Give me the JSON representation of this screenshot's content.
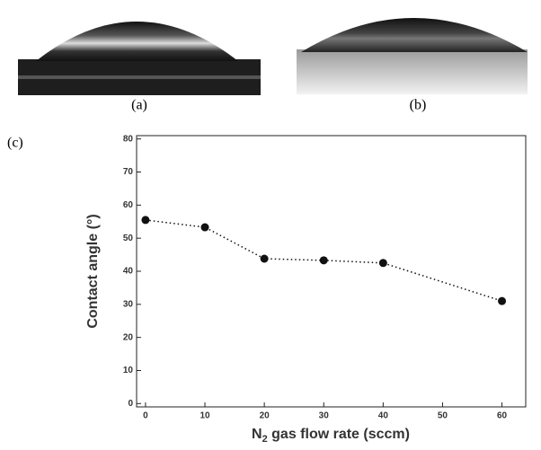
{
  "panel_labels": [
    "(a)",
    "(b)",
    "(c)"
  ],
  "chart_data": {
    "type": "scatter",
    "ylabel": "Contact angle (°)",
    "xlabel": [
      "N",
      "2",
      " gas flow rate (sccm)"
    ],
    "x": [
      0,
      10,
      20,
      30,
      40,
      60
    ],
    "values": [
      55.5,
      53.3,
      43.8,
      43.3,
      42.5,
      31
    ],
    "color": "#111111",
    "line_style": "dotted",
    "xlim": [
      -1.5,
      64
    ],
    "ylim": [
      -1,
      81
    ],
    "xticks": [
      0,
      10,
      20,
      30,
      40,
      50,
      60
    ],
    "yticks": [
      0,
      10,
      20,
      30,
      40,
      50,
      60,
      70,
      80
    ]
  }
}
